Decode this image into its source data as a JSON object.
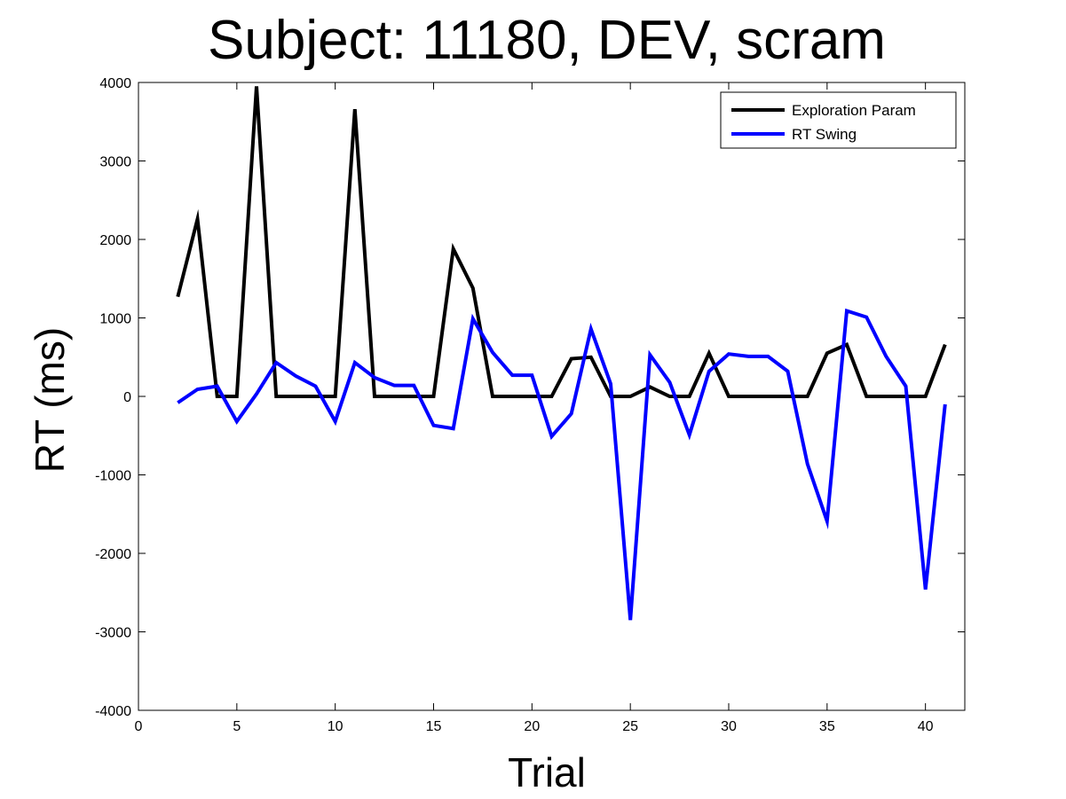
{
  "chart_data": {
    "type": "line",
    "title": "Subject: 11180, DEV, scram",
    "xlabel": "Trial",
    "ylabel": "RT (ms)",
    "xlim": [
      0,
      42
    ],
    "ylim": [
      -4000,
      4000
    ],
    "xticks": [
      0,
      5,
      10,
      15,
      20,
      25,
      30,
      35,
      40
    ],
    "yticks": [
      -4000,
      -3000,
      -2000,
      -1000,
      0,
      1000,
      2000,
      3000,
      4000
    ],
    "grid": false,
    "legend_position": "top-right",
    "x": [
      2,
      3,
      4,
      5,
      6,
      7,
      8,
      9,
      10,
      11,
      12,
      13,
      14,
      15,
      16,
      17,
      18,
      19,
      20,
      21,
      22,
      23,
      24,
      25,
      26,
      27,
      28,
      29,
      30,
      31,
      32,
      33,
      34,
      35,
      36,
      37,
      38,
      39,
      40,
      41
    ],
    "series": [
      {
        "name": "Exploration Param",
        "color": "#000000",
        "values": [
          1270,
          2260,
          0,
          0,
          3950,
          0,
          0,
          0,
          0,
          3660,
          0,
          0,
          0,
          0,
          1880,
          1380,
          0,
          0,
          0,
          0,
          480,
          500,
          0,
          0,
          120,
          0,
          0,
          550,
          0,
          0,
          0,
          0,
          0,
          550,
          660,
          0,
          0,
          0,
          0,
          660
        ]
      },
      {
        "name": "RT Swing",
        "color": "#0000ff",
        "values": [
          -80,
          90,
          130,
          -320,
          30,
          430,
          260,
          130,
          -320,
          430,
          240,
          140,
          140,
          -370,
          -410,
          990,
          560,
          270,
          270,
          -510,
          -220,
          860,
          160,
          -2850,
          530,
          180,
          -490,
          320,
          540,
          510,
          510,
          320,
          -860,
          -1590,
          1090,
          1010,
          510,
          130,
          -2460,
          -100
        ]
      }
    ]
  }
}
